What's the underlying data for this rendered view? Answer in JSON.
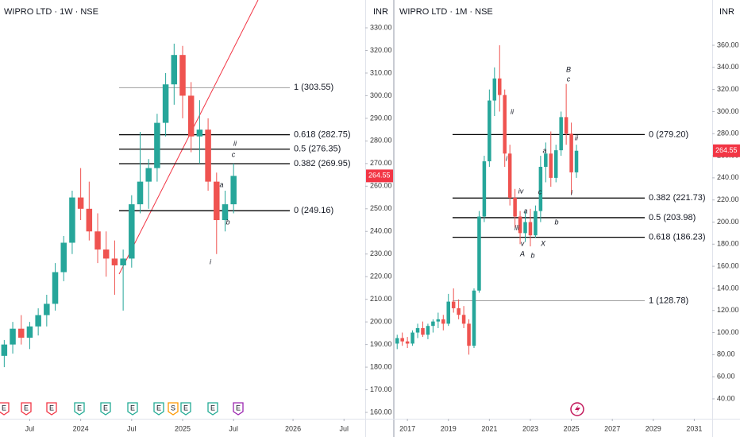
{
  "chart_data": [
    {
      "type": "candlestick",
      "title": "WIPRO LTD · 1W · NSE",
      "currency": "INR",
      "up_color": "#26a69a",
      "down_color": "#ef5350",
      "categories": [
        null,
        null,
        null,
        "Jul",
        null,
        null,
        null,
        null,
        null,
        "2024",
        null,
        null,
        null,
        null,
        null,
        "Jul",
        null,
        null,
        null,
        null,
        null,
        "2025",
        null,
        null,
        null,
        null,
        null,
        "Jul",
        null,
        null,
        null,
        null,
        null,
        null,
        "2026",
        null,
        null,
        null,
        null,
        null,
        "Jul",
        null,
        null
      ],
      "open": [
        185,
        190,
        197,
        193,
        198,
        203,
        208,
        222,
        235,
        255,
        250,
        240,
        232,
        228,
        225,
        228,
        252,
        262,
        268,
        288,
        305,
        318,
        300,
        282,
        285,
        262,
        245,
        252,
        null,
        null,
        null,
        null,
        null,
        null,
        null,
        null,
        null,
        null,
        null,
        null,
        null,
        null,
        null
      ],
      "high": [
        192,
        200,
        203,
        200,
        206,
        212,
        226,
        238,
        258,
        268,
        262,
        248,
        240,
        236,
        232,
        256,
        284,
        272,
        292,
        310,
        323,
        322,
        306,
        298,
        290,
        266,
        258,
        270,
        null,
        null,
        null,
        null,
        null,
        null,
        null,
        null,
        null,
        null,
        null,
        null,
        null,
        null,
        null
      ],
      "low": [
        180,
        186,
        190,
        188,
        194,
        198,
        205,
        218,
        230,
        245,
        236,
        226,
        220,
        212,
        205,
        224,
        248,
        250,
        262,
        282,
        296,
        290,
        275,
        270,
        258,
        230,
        240,
        248,
        null,
        null,
        null,
        null,
        null,
        null,
        null,
        null,
        null,
        null,
        null,
        null,
        null,
        null,
        null
      ],
      "close": [
        190,
        197,
        193,
        198,
        203,
        208,
        222,
        235,
        255,
        250,
        240,
        232,
        228,
        225,
        228,
        252,
        262,
        268,
        288,
        305,
        318,
        300,
        282,
        285,
        262,
        245,
        252,
        264.55,
        null,
        null,
        null,
        null,
        null,
        null,
        null,
        null,
        null,
        null,
        null,
        null,
        null,
        null,
        null
      ],
      "last_price": 264.55,
      "last_price_color": "#f23645",
      "ylim": [
        157.2,
        342.3
      ],
      "yticks": [
        {
          "value": 160,
          "label": "160.00"
        },
        {
          "value": 170,
          "label": "170.00"
        },
        {
          "value": 180,
          "label": "180.00"
        },
        {
          "value": 190,
          "label": "190.00"
        },
        {
          "value": 200,
          "label": "200.00"
        },
        {
          "value": 210,
          "label": "210.00"
        },
        {
          "value": 220,
          "label": "220.00"
        },
        {
          "value": 230,
          "label": "230.00"
        },
        {
          "value": 240,
          "label": "240.00"
        },
        {
          "value": 250,
          "label": "250.00"
        },
        {
          "value": 260,
          "label": "260.00"
        },
        {
          "value": 270,
          "label": "270.00"
        },
        {
          "value": 280,
          "label": "280.00"
        },
        {
          "value": 290,
          "label": "290.00"
        },
        {
          "value": 300,
          "label": "300.00"
        },
        {
          "value": 310,
          "label": "310.00"
        },
        {
          "value": 320,
          "label": "320.00"
        },
        {
          "value": 330,
          "label": "330.00"
        }
      ],
      "levels": [
        {
          "value": 303.55,
          "label": "1 (303.55)",
          "color": "#9e9e9e"
        },
        {
          "value": 282.75,
          "label": "0.618 (282.75)",
          "color": "#000000"
        },
        {
          "value": 276.35,
          "label": "0.5 (276.35)",
          "color": "#000000"
        },
        {
          "value": 269.95,
          "label": "0.382 (269.95)",
          "color": "#000000"
        },
        {
          "value": 249.16,
          "label": "0 (249.16)",
          "color": "#000000"
        }
      ],
      "annotations": [
        "ii",
        "c",
        "a",
        "b",
        "i"
      ],
      "events": [
        {
          "label": "E",
          "color": "#f23645"
        },
        {
          "label": "E",
          "color": "#f23645"
        },
        {
          "label": "E",
          "color": "#f23645"
        },
        {
          "label": "E",
          "color": "#22ab94"
        },
        {
          "label": "E",
          "color": "#22ab94"
        },
        {
          "label": "E",
          "color": "#22ab94"
        },
        {
          "label": "E",
          "color": "#22ab94"
        },
        {
          "label": "S",
          "color": "#ff9800"
        },
        {
          "label": "E",
          "color": "#22ab94"
        },
        {
          "label": "E",
          "color": "#22ab94"
        },
        {
          "label": "E",
          "color": "#9c27b0"
        }
      ]
    },
    {
      "type": "candlestick",
      "title": "WIPRO LTD · 1M · NSE",
      "currency": "INR",
      "up_color": "#26a69a",
      "down_color": "#ef5350",
      "categories": [
        null,
        null,
        "2017",
        null,
        null,
        null,
        null,
        null,
        null,
        null,
        "2019",
        null,
        null,
        null,
        null,
        null,
        null,
        null,
        "2021",
        null,
        null,
        null,
        null,
        null,
        null,
        null,
        "2023",
        null,
        null,
        null,
        null,
        null,
        null,
        null,
        "2025",
        null,
        null,
        null,
        null,
        null,
        null,
        null,
        "2027",
        null,
        null,
        null,
        null,
        null,
        null,
        null,
        "2029",
        null,
        null,
        null,
        null,
        null,
        null,
        null,
        "2031",
        null,
        null,
        null
      ],
      "open": [
        90,
        95,
        92,
        90,
        100,
        104,
        98,
        106,
        110,
        112,
        108,
        128,
        122,
        116,
        108,
        88,
        138,
        205,
        255,
        310,
        330,
        315,
        262,
        222,
        205,
        190,
        200,
        188,
        210,
        250,
        262,
        240,
        265,
        295,
        280,
        245,
        null,
        null,
        null,
        null,
        null,
        null,
        null,
        null,
        null,
        null,
        null,
        null,
        null,
        null,
        null,
        null,
        null,
        null,
        null,
        null,
        null,
        null,
        null,
        null,
        null,
        null
      ],
      "high": [
        98,
        100,
        96,
        102,
        108,
        110,
        108,
        112,
        118,
        116,
        135,
        140,
        130,
        124,
        112,
        140,
        210,
        260,
        320,
        340,
        360,
        320,
        270,
        230,
        210,
        210,
        212,
        215,
        260,
        272,
        282,
        270,
        300,
        325,
        290,
        270,
        null,
        null,
        null,
        null,
        null,
        null,
        null,
        null,
        null,
        null,
        null,
        null,
        null,
        null,
        null,
        null,
        null,
        null,
        null,
        null,
        null,
        null,
        null,
        null,
        null,
        null
      ],
      "low": [
        85,
        88,
        86,
        88,
        95,
        96,
        94,
        100,
        104,
        102,
        106,
        118,
        112,
        104,
        80,
        86,
        136,
        200,
        250,
        296,
        300,
        250,
        215,
        195,
        180,
        182,
        178,
        186,
        200,
        236,
        232,
        236,
        260,
        270,
        225,
        240,
        null,
        null,
        null,
        null,
        null,
        null,
        null,
        null,
        null,
        null,
        null,
        null,
        null,
        null,
        null,
        null,
        null,
        null,
        null,
        null,
        null,
        null,
        null,
        null,
        null,
        null
      ],
      "close": [
        95,
        92,
        90,
        100,
        104,
        98,
        106,
        110,
        112,
        108,
        128,
        122,
        116,
        108,
        88,
        138,
        205,
        255,
        310,
        330,
        315,
        262,
        222,
        205,
        190,
        200,
        188,
        210,
        250,
        262,
        240,
        265,
        295,
        280,
        245,
        264.55,
        null,
        null,
        null,
        null,
        null,
        null,
        null,
        null,
        null,
        null,
        null,
        null,
        null,
        null,
        null,
        null,
        null,
        null,
        null,
        null,
        null,
        null,
        null,
        null,
        null,
        null
      ],
      "last_price": 264.55,
      "last_price_color": "#f23645",
      "ylim": [
        22,
        401
      ],
      "yticks": [
        {
          "value": 40,
          "label": "40.00"
        },
        {
          "value": 60,
          "label": "60.00"
        },
        {
          "value": 80,
          "label": "80.00"
        },
        {
          "value": 100,
          "label": "100.00"
        },
        {
          "value": 120,
          "label": "120.00"
        },
        {
          "value": 140,
          "label": "140.00"
        },
        {
          "value": 160,
          "label": "160.00"
        },
        {
          "value": 180,
          "label": "180.00"
        },
        {
          "value": 200,
          "label": "200.00"
        },
        {
          "value": 220,
          "label": "220.00"
        },
        {
          "value": 240,
          "label": "240.00"
        },
        {
          "value": 260,
          "label": "260.00"
        },
        {
          "value": 280,
          "label": "280.00"
        },
        {
          "value": 300,
          "label": "300.00"
        },
        {
          "value": 320,
          "label": "320.00"
        },
        {
          "value": 340,
          "label": "340.00"
        },
        {
          "value": 360,
          "label": "360.00"
        }
      ],
      "levels": [
        {
          "value": 279.2,
          "label": "0 (279.20)",
          "color": "#000000"
        },
        {
          "value": 221.73,
          "label": "0.382 (221.73)",
          "color": "#000000"
        },
        {
          "value": 203.98,
          "label": "0.5 (203.98)",
          "color": "#000000"
        },
        {
          "value": 186.23,
          "label": "0.618 (186.23)",
          "color": "#000000"
        },
        {
          "value": 128.78,
          "label": "1 (128.78)",
          "color": "#9e9e9e"
        }
      ],
      "annotations": [
        "ii",
        "i",
        "iv",
        "a",
        "iii",
        "v",
        "A",
        "b",
        "X",
        "c",
        "a",
        "b",
        "B",
        "c",
        "ii",
        "i"
      ],
      "events": []
    }
  ]
}
